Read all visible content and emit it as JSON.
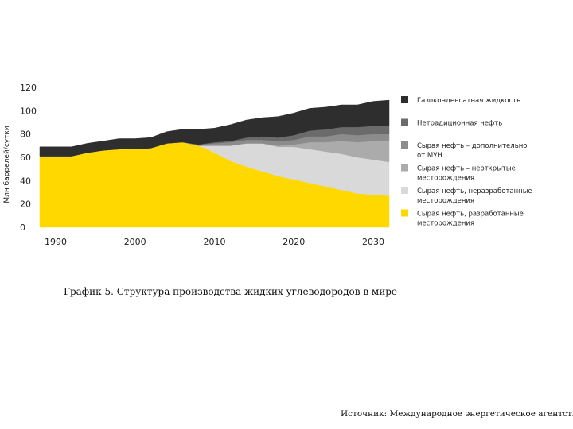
{
  "chart_data": {
    "type": "area",
    "stacked": true,
    "ylabel": "Млн баррелей/сутки",
    "ylim": [
      0,
      120
    ],
    "yticks": [
      0,
      20,
      40,
      60,
      80,
      100,
      120
    ],
    "xlim": [
      1988,
      2032
    ],
    "xticks": [
      1990,
      2000,
      2010,
      2020,
      2030
    ],
    "x": [
      1988,
      1990,
      1992,
      1994,
      1996,
      1998,
      2000,
      2002,
      2004,
      2006,
      2008,
      2010,
      2012,
      2014,
      2016,
      2018,
      2020,
      2022,
      2024,
      2026,
      2028,
      2030,
      2032
    ],
    "series": [
      {
        "name": "Сырая нефть, разработанные месторождения",
        "color": "#FFD800",
        "values": [
          61,
          61,
          61,
          64,
          66,
          67,
          67,
          68,
          72,
          73,
          70,
          64,
          57,
          52,
          48,
          44,
          41,
          38,
          35,
          32,
          29,
          28,
          27
        ]
      },
      {
        "name": "Сырая нефть, неразработанные месторождения",
        "color": "#D9D9D9",
        "values": [
          0,
          0,
          0,
          0,
          0,
          0,
          0,
          0,
          0,
          0,
          0,
          6,
          13,
          20,
          24,
          25,
          28,
          29,
          30,
          31,
          31,
          30,
          29
        ]
      },
      {
        "name": "Сырая нефть – неоткрытые месторождения",
        "color": "#ABABAB",
        "values": [
          0,
          0,
          0,
          0,
          0,
          0,
          0,
          0,
          0,
          0,
          0,
          0,
          0,
          0,
          0,
          1,
          2,
          6,
          8,
          11,
          13,
          16,
          18
        ]
      },
      {
        "name": "Сырая нефть – дополнительно от МУН",
        "color": "#8C8C8C",
        "values": [
          0,
          0,
          0,
          0,
          0,
          0,
          0,
          0,
          0,
          0,
          1,
          2,
          3,
          3,
          3,
          4,
          4,
          5,
          5,
          6,
          6,
          6,
          6
        ]
      },
      {
        "name": "Нетрадиционная нефть",
        "color": "#6B6B6B",
        "values": [
          0,
          0,
          0,
          0,
          0,
          0,
          0,
          0,
          0,
          0,
          0,
          1,
          1,
          2,
          3,
          3,
          4,
          5,
          6,
          6,
          7,
          7,
          7
        ]
      },
      {
        "name": "Газоконденсатная жидкость",
        "color": "#2E2E2E",
        "values": [
          8,
          8,
          8,
          8,
          8,
          9,
          9,
          9,
          10,
          11,
          13,
          12,
          14,
          15,
          16,
          18,
          19,
          19,
          19,
          19,
          19,
          21,
          22
        ]
      }
    ],
    "legend": [
      {
        "label": "Газоконденсатная жидкость",
        "color": "#2E2E2E"
      },
      {
        "label": "Нетрадиционная нефть",
        "color": "#6B6B6B"
      },
      {
        "label": "Сырая нефть – дополнительно от МУН",
        "color": "#8C8C8C"
      },
      {
        "label": "Сырая нефть – неоткрытые месторождения",
        "color": "#ABABAB"
      },
      {
        "label": "Сырая нефть, неразработанные месторождения",
        "color": "#D9D9D9"
      },
      {
        "label": "Сырая нефть, разработанные месторождения",
        "color": "#FFD800"
      }
    ],
    "legend_position": "right"
  },
  "caption": "График 5. Структура производства жидких углеводородов в мире",
  "source": "Источник: Международное энергетическое агентство."
}
